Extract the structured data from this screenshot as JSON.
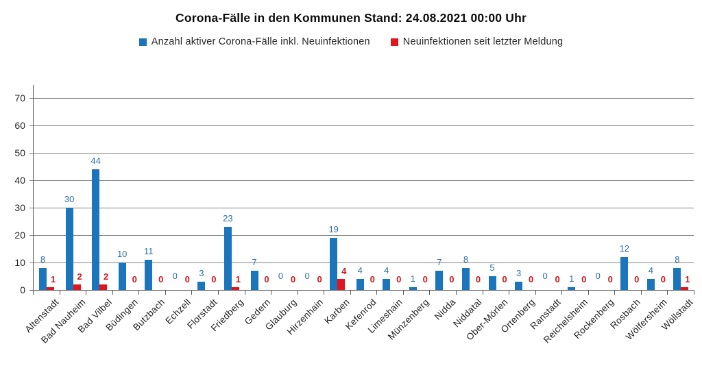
{
  "title": "Corona-Fälle in den Kommunen Stand: 24.08.2021 00:00 Uhr",
  "chart_data": {
    "type": "bar",
    "title": "Corona-Fälle in den Kommunen Stand: 24.08.2021 00:00 Uhr",
    "categories": [
      "Altenstadt",
      "Bad Nauheim",
      "Bad Vilbel",
      "Büdingen",
      "Butzbach",
      "Echzell",
      "Florstadt",
      "Friedberg",
      "Gedern",
      "Glauburg",
      "Hirzenhain",
      "Karben",
      "Kefenrod",
      "Limeshain",
      "Münzenberg",
      "Nidda",
      "Niddatal",
      "Ober-Mörlen",
      "Ortenberg",
      "Ranstadt",
      "Reichelsheim",
      "Rockenberg",
      "Rosbach",
      "Wölfersheim",
      "Wöllstadt"
    ],
    "series": [
      {
        "name": "Anzahl aktiver Corona-Fälle inkl. Neuinfektionen",
        "color": "#1B75BC",
        "label_color": "#2E6DA4",
        "values": [
          8,
          30,
          44,
          10,
          11,
          0,
          3,
          23,
          7,
          0,
          0,
          19,
          4,
          4,
          1,
          7,
          8,
          5,
          3,
          0,
          1,
          0,
          12,
          4,
          8
        ]
      },
      {
        "name": "Neuinfektionen seit letzter Meldung",
        "color": "#E0161C",
        "label_color": "#D0161B",
        "values": [
          1,
          2,
          2,
          0,
          0,
          0,
          0,
          1,
          0,
          0,
          0,
          4,
          0,
          0,
          0,
          0,
          0,
          0,
          0,
          0,
          0,
          0,
          0,
          0,
          1
        ]
      }
    ],
    "ylim": [
      0,
      70
    ],
    "yticks": [
      0,
      10,
      20,
      30,
      40,
      50,
      60,
      70
    ],
    "grid": true,
    "legend_position": "top",
    "bar_value_labels": true
  }
}
